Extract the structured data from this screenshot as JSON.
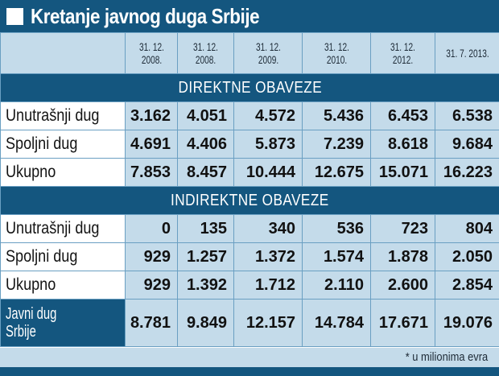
{
  "title": "Kretanje javnog duga Srbije",
  "chart_data": {
    "type": "table",
    "columns": [
      "31. 12. 2008.",
      "31. 12. 2008.",
      "31. 12. 2009.",
      "31. 12. 2010.",
      "31. 12. 2012.",
      "31. 7. 2013."
    ],
    "column_lines": [
      [
        "31. 12.",
        "2008."
      ],
      [
        "31. 12.",
        "2008."
      ],
      [
        "31. 12.",
        "2009."
      ],
      [
        "31. 12.",
        "2010."
      ],
      [
        "31. 12.",
        "2012."
      ],
      [
        "31. 7. 2013.",
        ""
      ]
    ],
    "sections": [
      {
        "title": "DIREKTNE OBAVEZE",
        "rows": [
          {
            "label": "Unutrašnji dug",
            "values": [
              "3.162",
              "4.051",
              "4.572",
              "5.436",
              "6.453",
              "6.538"
            ]
          },
          {
            "label": "Spoljni dug",
            "values": [
              "4.691",
              "4.406",
              "5.873",
              "7.239",
              "8.618",
              "9.684"
            ]
          },
          {
            "label": "Ukupno",
            "values": [
              "7.853",
              "8.457",
              "10.444",
              "12.675",
              "15.071",
              "16.223"
            ]
          }
        ]
      },
      {
        "title": "INDIREKTNE OBAVEZE",
        "rows": [
          {
            "label": "Unutrašnji dug",
            "values": [
              "0",
              "135",
              "340",
              "536",
              "723",
              "804"
            ]
          },
          {
            "label": "Spoljni dug",
            "values": [
              "929",
              "1.257",
              "1.372",
              "1.574",
              "1.878",
              "2.050"
            ]
          },
          {
            "label": "Ukupno",
            "values": [
              "929",
              "1.392",
              "1.712",
              "2.110",
              "2.600",
              "2.854"
            ]
          }
        ]
      }
    ],
    "total": {
      "label_lines": [
        "Javni dug",
        "Srbije"
      ],
      "values": [
        "8.781",
        "9.849",
        "12.157",
        "14.784",
        "17.671",
        "19.076"
      ]
    },
    "footnote": "* u milionima evra"
  },
  "colors": {
    "dark_blue": "#14567f",
    "light_blue": "#c4dbea",
    "grid_line": "#6a9fc2"
  }
}
